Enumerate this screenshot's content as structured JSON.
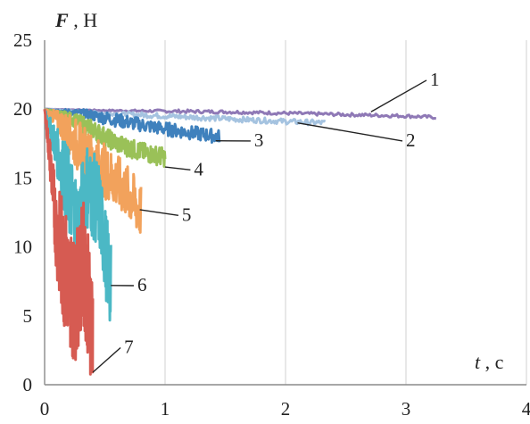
{
  "chart_data": {
    "type": "line",
    "x_title": {
      "var": "t",
      "sep": " , ",
      "unit": "с"
    },
    "y_title": {
      "var": "F",
      "sep": " , ",
      "unit": "Н"
    },
    "xlim": [
      0,
      4
    ],
    "ylim": [
      0,
      25
    ],
    "x_ticks": [
      "0",
      "1",
      "2",
      "3",
      "4"
    ],
    "y_ticks": [
      "0",
      "5",
      "10",
      "15",
      "20",
      "25"
    ],
    "grid": "vertical",
    "series": [
      {
        "name": "1",
        "color": "#8f79b6",
        "points": [
          [
            0,
            20.0
          ],
          [
            0.5,
            19.9
          ],
          [
            1.0,
            19.85
          ],
          [
            1.5,
            19.8
          ],
          [
            2.0,
            19.7
          ],
          [
            2.5,
            19.6
          ],
          [
            3.0,
            19.5
          ],
          [
            3.25,
            19.4
          ]
        ],
        "noise": 0.12
      },
      {
        "name": "2",
        "color": "#a5c3e0",
        "points": [
          [
            0,
            20.0
          ],
          [
            0.5,
            19.7
          ],
          [
            1.0,
            19.5
          ],
          [
            1.5,
            19.3
          ],
          [
            2.0,
            19.1
          ],
          [
            2.33,
            19.0
          ]
        ],
        "noise": 0.2
      },
      {
        "name": "3",
        "color": "#3f81bd",
        "points": [
          [
            0,
            20.0
          ],
          [
            0.3,
            19.7
          ],
          [
            0.6,
            19.2
          ],
          [
            0.9,
            18.7
          ],
          [
            1.2,
            18.3
          ],
          [
            1.45,
            18.0
          ]
        ],
        "noise": 0.5
      },
      {
        "name": "4",
        "color": "#9ac158",
        "points": [
          [
            0,
            20.0
          ],
          [
            0.2,
            19.4
          ],
          [
            0.4,
            18.5
          ],
          [
            0.6,
            17.5
          ],
          [
            0.8,
            16.9
          ],
          [
            1.0,
            16.5
          ]
        ],
        "noise": 0.7
      },
      {
        "name": "5",
        "color": "#f2a25c",
        "points": [
          [
            0,
            20.0
          ],
          [
            0.15,
            18.8
          ],
          [
            0.3,
            17.0
          ],
          [
            0.4,
            16.2
          ],
          [
            0.5,
            15.5
          ],
          [
            0.6,
            14.7
          ],
          [
            0.7,
            13.8
          ],
          [
            0.8,
            12.5
          ]
        ],
        "noise": 2.0
      },
      {
        "name": "6",
        "color": "#4bb8c5",
        "points": [
          [
            0,
            20.0
          ],
          [
            0.1,
            17.0
          ],
          [
            0.2,
            14.0
          ],
          [
            0.28,
            11.8
          ],
          [
            0.35,
            14.5
          ],
          [
            0.45,
            13.0
          ],
          [
            0.55,
            7.0
          ]
        ],
        "noise": 3.2
      },
      {
        "name": "7",
        "color": "#d65b52",
        "points": [
          [
            0,
            20.0
          ],
          [
            0.05,
            16.0
          ],
          [
            0.1,
            11.0
          ],
          [
            0.18,
            8.0
          ],
          [
            0.25,
            6.0
          ],
          [
            0.32,
            9.0
          ],
          [
            0.4,
            4.0
          ]
        ],
        "noise": 4.5
      }
    ],
    "annotations": [
      {
        "text": "1",
        "x": 3.2,
        "y": 21.7,
        "tx": 2.71,
        "ty": 19.8
      },
      {
        "text": "2",
        "x": 3.0,
        "y": 17.3,
        "tx": 2.1,
        "ty": 19.0
      },
      {
        "text": "3",
        "x": 1.74,
        "y": 17.3,
        "tx": 1.42,
        "ty": 17.7
      },
      {
        "text": "4",
        "x": 1.24,
        "y": 15.2,
        "tx": 1.0,
        "ty": 15.8
      },
      {
        "text": "5",
        "x": 1.14,
        "y": 11.9,
        "tx": 0.79,
        "ty": 12.7
      },
      {
        "text": "6",
        "x": 0.77,
        "y": 6.8,
        "tx": 0.55,
        "ty": 7.2
      },
      {
        "text": "7",
        "x": 0.66,
        "y": 2.3,
        "tx": 0.4,
        "ty": 0.9
      }
    ]
  }
}
